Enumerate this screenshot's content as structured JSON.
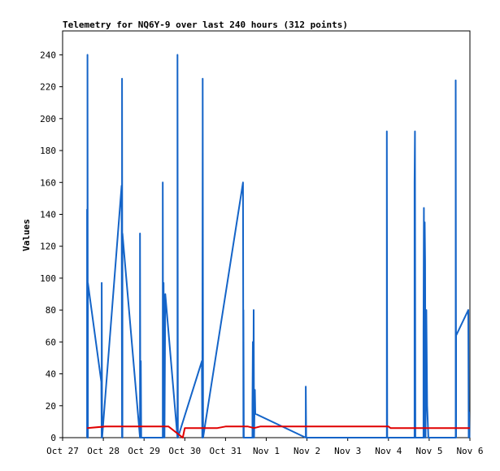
{
  "chart_data": {
    "type": "line",
    "title": "Telemetry for NQ6Y-9 over last 240 hours (312 points)",
    "xlabel": "",
    "ylabel": "Values",
    "xlim": [
      0,
      10
    ],
    "ylim": [
      0,
      255
    ],
    "x_ticks": [
      {
        "label": "Oct 27",
        "x": 0
      },
      {
        "label": "Oct 28",
        "x": 1
      },
      {
        "label": "Oct 29",
        "x": 2
      },
      {
        "label": "Oct 30",
        "x": 3
      },
      {
        "label": "Oct 31",
        "x": 4
      },
      {
        "label": "Nov 1",
        "x": 5
      },
      {
        "label": "Nov 2",
        "x": 6
      },
      {
        "label": "Nov 3",
        "x": 7
      },
      {
        "label": "Nov 4",
        "x": 8
      },
      {
        "label": "Nov 5",
        "x": 9
      },
      {
        "label": "Nov 6",
        "x": 10
      }
    ],
    "y_ticks": [
      0,
      20,
      40,
      60,
      80,
      100,
      120,
      140,
      160,
      180,
      200,
      220,
      240
    ],
    "grid": false,
    "series": [
      {
        "name": "",
        "color": "#1464c8",
        "points": [
          [
            0.6,
            0
          ],
          [
            0.6,
            143
          ],
          [
            0.6,
            128
          ],
          [
            0.61,
            0
          ],
          [
            0.61,
            240
          ],
          [
            0.62,
            0
          ],
          [
            0.62,
            97
          ],
          [
            0.95,
            35
          ],
          [
            0.96,
            0
          ],
          [
            0.96,
            97
          ],
          [
            0.97,
            0
          ],
          [
            1.45,
            158
          ],
          [
            1.46,
            0
          ],
          [
            1.46,
            225
          ],
          [
            1.47,
            0
          ],
          [
            1.47,
            128
          ],
          [
            1.9,
            0
          ],
          [
            1.9,
            128
          ],
          [
            1.91,
            0
          ],
          [
            1.92,
            48
          ],
          [
            1.93,
            0
          ],
          [
            2.46,
            0
          ],
          [
            2.46,
            160
          ],
          [
            2.47,
            0
          ],
          [
            2.48,
            97
          ],
          [
            2.5,
            0
          ],
          [
            2.52,
            90
          ],
          [
            2.82,
            0
          ],
          [
            2.82,
            240
          ],
          [
            2.83,
            0
          ],
          [
            3.42,
            48
          ],
          [
            3.43,
            0
          ],
          [
            3.44,
            192
          ],
          [
            3.44,
            225
          ],
          [
            3.45,
            0
          ],
          [
            4.43,
            160
          ],
          [
            4.44,
            0
          ],
          [
            4.44,
            80
          ],
          [
            4.45,
            0
          ],
          [
            4.66,
            0
          ],
          [
            4.66,
            20
          ],
          [
            4.67,
            60
          ],
          [
            4.68,
            0
          ],
          [
            4.69,
            80
          ],
          [
            4.7,
            0
          ],
          [
            4.72,
            30
          ],
          [
            4.73,
            15
          ],
          [
            5.97,
            0
          ],
          [
            5.97,
            32
          ],
          [
            5.98,
            0
          ],
          [
            7.96,
            0
          ],
          [
            7.96,
            192
          ],
          [
            7.97,
            0
          ],
          [
            8.64,
            0
          ],
          [
            8.64,
            160
          ],
          [
            8.65,
            192
          ],
          [
            8.66,
            0
          ],
          [
            8.86,
            0
          ],
          [
            8.86,
            65
          ],
          [
            8.87,
            144
          ],
          [
            8.88,
            0
          ],
          [
            8.89,
            135
          ],
          [
            8.9,
            110
          ],
          [
            8.91,
            0
          ],
          [
            8.93,
            80
          ],
          [
            8.95,
            20
          ],
          [
            8.98,
            0
          ],
          [
            9.65,
            0
          ],
          [
            9.65,
            224
          ],
          [
            9.66,
            0
          ],
          [
            9.66,
            64
          ],
          [
            9.96,
            80
          ],
          [
            9.97,
            0
          ],
          [
            9.98,
            16
          ],
          [
            9.99,
            0
          ]
        ]
      },
      {
        "name": "",
        "color": "#e00000",
        "points": [
          [
            0.6,
            6
          ],
          [
            1.05,
            7
          ],
          [
            2.6,
            7
          ],
          [
            2.95,
            0
          ],
          [
            3.0,
            6
          ],
          [
            3.8,
            6
          ],
          [
            4.0,
            7
          ],
          [
            4.55,
            7
          ],
          [
            4.7,
            6
          ],
          [
            4.85,
            7
          ],
          [
            8.0,
            7
          ],
          [
            8.05,
            6
          ],
          [
            10.0,
            6
          ]
        ]
      }
    ]
  }
}
